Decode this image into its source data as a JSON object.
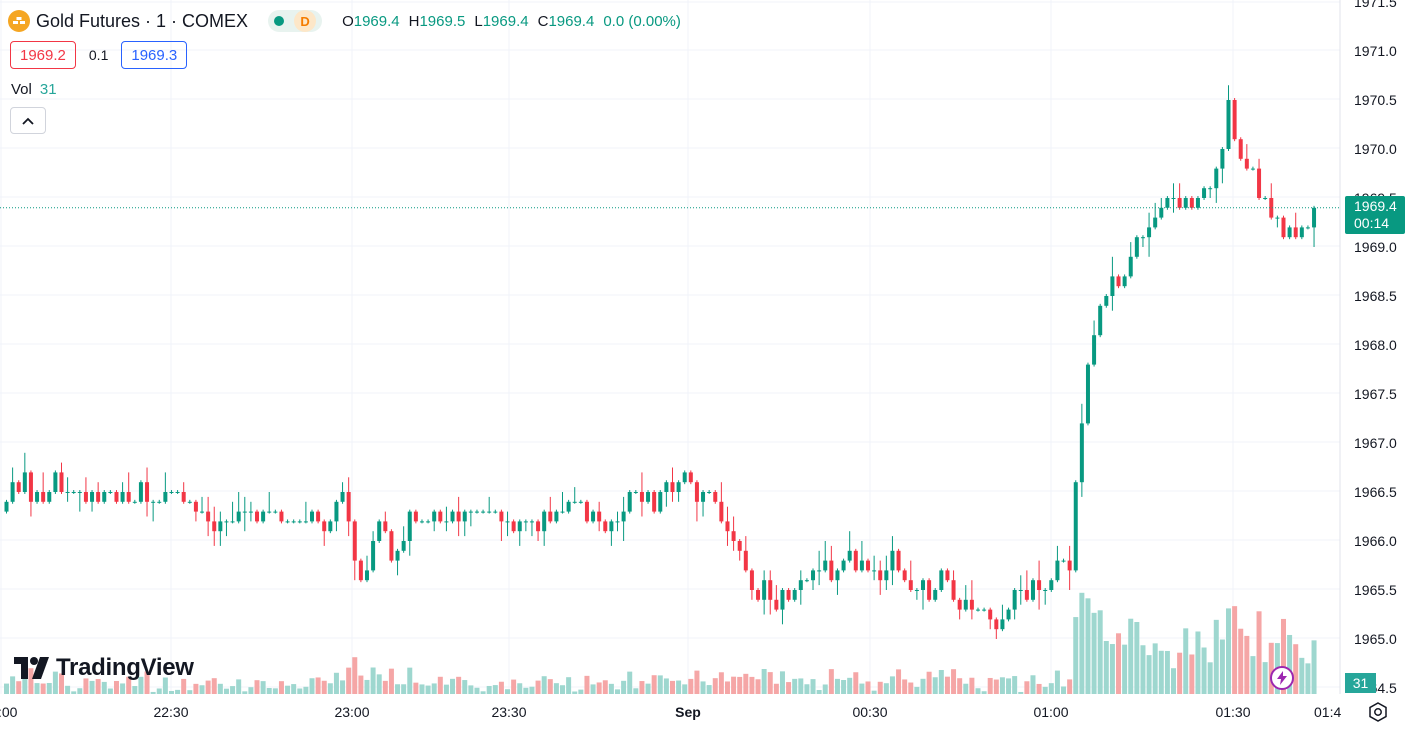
{
  "symbol": {
    "title": "Gold Futures · 1 · COMEX",
    "badge": "D"
  },
  "ohlc": {
    "o_label": "O",
    "o_value": "1969.4",
    "h_label": "H",
    "h_value": "1969.5",
    "l_label": "L",
    "l_value": "1969.4",
    "c_label": "C",
    "c_value": "1969.4",
    "change": "0.0 (0.00%)"
  },
  "quote": {
    "bid": "1969.2",
    "spread": "0.1",
    "ask": "1969.3"
  },
  "volume": {
    "label": "Vol",
    "value": "31"
  },
  "brand": "TradingView",
  "price_axis": {
    "ticks": [
      "1971.5",
      "1971.0",
      "1970.5",
      "1970.0",
      "1969.5",
      "1969.0",
      "1968.5",
      "1968.0",
      "1967.5",
      "1967.0",
      "1966.5",
      "1966.0",
      "1965.5",
      "1965.0",
      "1964.5"
    ],
    "last_price": "1969.4",
    "countdown": "00:14",
    "volume_last": "31"
  },
  "time_axis": {
    "ticks": [
      ":00",
      "22:30",
      "23:00",
      "23:30",
      "Sep",
      "00:30",
      "01:00",
      "01:30",
      "01:4"
    ]
  },
  "colors": {
    "up": "#089981",
    "down": "#f23645",
    "vol_up": "#9ed7cf",
    "vol_down": "#f5a6a6",
    "alert": "#9c27b0"
  },
  "icons": {
    "alert": "lightning-alert-icon",
    "settings": "gear-icon",
    "collapse": "chevron-up-icon"
  },
  "chart_data": {
    "type": "candlestick",
    "interval": "1 minute",
    "ylim": [
      1964.5,
      1971.5
    ],
    "x_ticks": [
      ":00",
      "22:30",
      "23:00",
      "23:30",
      "Sep",
      "00:30",
      "01:00",
      "01:30",
      "01:4"
    ],
    "y_ticks": [
      1971.5,
      1971.0,
      1970.5,
      1970.0,
      1969.5,
      1969.0,
      1968.5,
      1968.0,
      1967.5,
      1967.0,
      1966.5,
      1966.0,
      1965.5,
      1965.0,
      1964.5
    ],
    "last": 1969.4,
    "closes": [
      1966.4,
      1966.6,
      1966.5,
      1966.7,
      1966.4,
      1966.5,
      1966.4,
      1966.5,
      1966.7,
      1966.5,
      1966.5,
      1966.5,
      1966.5,
      1966.4,
      1966.5,
      1966.4,
      1966.5,
      1966.5,
      1966.4,
      1966.5,
      1966.4,
      1966.4,
      1966.6,
      1966.4,
      1966.4,
      1966.4,
      1966.5,
      1966.5,
      1966.5,
      1966.4,
      1966.4,
      1966.3,
      1966.3,
      1966.2,
      1966.1,
      1966.2,
      1966.2,
      1966.2,
      1966.3,
      1966.3,
      1966.3,
      1966.2,
      1966.3,
      1966.3,
      1966.3,
      1966.2,
      1966.2,
      1966.2,
      1966.2,
      1966.2,
      1966.3,
      1966.2,
      1966.1,
      1966.2,
      1966.4,
      1966.5,
      1966.2,
      1965.8,
      1965.6,
      1965.7,
      1966.0,
      1966.2,
      1966.1,
      1965.8,
      1965.9,
      1966.0,
      1966.3,
      1966.2,
      1966.2,
      1966.2,
      1966.3,
      1966.2,
      1966.2,
      1966.3,
      1966.2,
      1966.3,
      1966.3,
      1966.3,
      1966.3,
      1966.3,
      1966.3,
      1966.2,
      1966.2,
      1966.1,
      1966.2,
      1966.2,
      1966.2,
      1966.1,
      1966.3,
      1966.2,
      1966.3,
      1966.3,
      1966.4,
      1966.4,
      1966.4,
      1966.2,
      1966.3,
      1966.2,
      1966.1,
      1966.2,
      1966.2,
      1966.3,
      1966.5,
      1966.5,
      1966.4,
      1966.5,
      1966.3,
      1966.5,
      1966.6,
      1966.5,
      1966.6,
      1966.7,
      1966.6,
      1966.4,
      1966.5,
      1966.5,
      1966.4,
      1966.2,
      1966.1,
      1966.0,
      1965.9,
      1965.7,
      1965.5,
      1965.4,
      1965.6,
      1965.4,
      1965.3,
      1965.5,
      1965.4,
      1965.5,
      1965.6,
      1965.6,
      1965.7,
      1965.7,
      1965.8,
      1965.6,
      1965.7,
      1965.8,
      1965.9,
      1965.7,
      1965.8,
      1965.7,
      1965.7,
      1965.6,
      1965.7,
      1965.9,
      1965.7,
      1965.6,
      1965.5,
      1965.5,
      1965.6,
      1965.4,
      1965.5,
      1965.7,
      1965.6,
      1965.4,
      1965.3,
      1965.4,
      1965.3,
      1965.3,
      1965.3,
      1965.2,
      1965.1,
      1965.2,
      1965.3,
      1965.5,
      1965.5,
      1965.4,
      1965.6,
      1965.5,
      1965.5,
      1965.6,
      1965.8,
      1965.8,
      1965.7,
      1966.6,
      1967.2,
      1967.8,
      1968.1,
      1968.4,
      1968.5,
      1968.7,
      1968.6,
      1968.7,
      1968.9,
      1969.1,
      1969.1,
      1969.2,
      1969.3,
      1969.4,
      1969.5,
      1969.5,
      1969.4,
      1969.5,
      1969.4,
      1969.5,
      1969.6,
      1969.6,
      1969.8,
      1970.0,
      1970.5,
      1970.1,
      1969.9,
      1969.8,
      1969.8,
      1969.5,
      1969.5,
      1969.3,
      1969.3,
      1969.1,
      1969.2,
      1969.1,
      1969.2,
      1969.2,
      1969.4
    ]
  }
}
